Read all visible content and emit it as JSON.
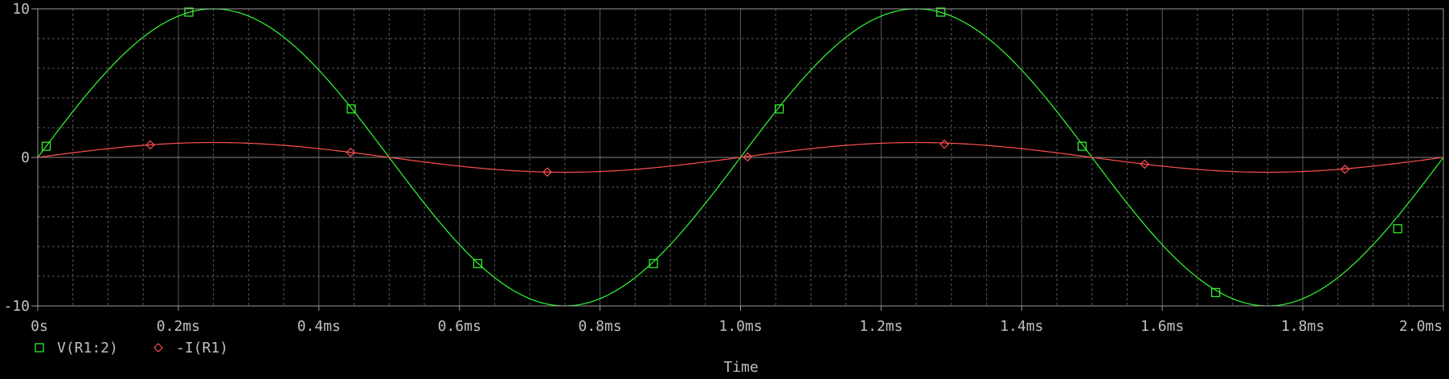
{
  "chart_data": {
    "type": "line",
    "title": "",
    "xlabel": "Time",
    "ylabel": "",
    "xlim": [
      0,
      2.0
    ],
    "ylim": [
      -10,
      10
    ],
    "x_unit": "ms",
    "x_ticks": [
      0,
      0.2,
      0.4,
      0.6,
      0.8,
      1.0,
      1.2,
      1.4,
      1.6,
      1.8,
      2.0
    ],
    "x_tick_labels": [
      "0s",
      "0.2ms",
      "0.4ms",
      "0.6ms",
      "0.8ms",
      "1.0ms",
      "1.2ms",
      "1.4ms",
      "1.6ms",
      "1.8ms",
      "2.0ms"
    ],
    "y_ticks": [
      -10,
      0,
      10
    ],
    "y_tick_labels": [
      "-10",
      "0",
      "10"
    ],
    "grid": true,
    "legend_position": "bottom-left",
    "background": "#000000",
    "grid_color": "#5a5a5a",
    "series": [
      {
        "name": "V(R1:2)",
        "color": "#33ff33",
        "marker": "square",
        "amplitude": 10,
        "frequency_khz": 1,
        "x": [
          0,
          0.0125,
          0.025,
          0.05,
          0.075,
          0.1,
          0.125,
          0.15,
          0.175,
          0.2,
          0.225,
          0.25,
          0.275,
          0.3,
          0.325,
          0.35,
          0.375,
          0.4,
          0.425,
          0.45,
          0.475,
          0.5,
          0.525,
          0.55,
          0.575,
          0.6,
          0.625,
          0.65,
          0.675,
          0.7,
          0.725,
          0.75,
          0.775,
          0.8,
          0.825,
          0.85,
          0.875,
          0.9,
          0.925,
          0.95,
          0.975,
          1.0,
          1.025,
          1.05,
          1.075,
          1.1,
          1.125,
          1.15,
          1.175,
          1.2,
          1.225,
          1.25,
          1.275,
          1.3,
          1.325,
          1.35,
          1.375,
          1.4,
          1.425,
          1.45,
          1.475,
          1.5,
          1.525,
          1.55,
          1.575,
          1.6,
          1.625,
          1.65,
          1.675,
          1.7,
          1.725,
          1.75,
          1.775,
          1.8,
          1.825,
          1.85,
          1.875,
          1.9,
          1.925,
          1.95,
          1.975,
          2.0
        ],
        "values": [
          0,
          0.78,
          1.56,
          3.09,
          4.54,
          5.88,
          7.07,
          8.09,
          8.91,
          9.51,
          9.88,
          10,
          9.88,
          9.51,
          8.91,
          8.09,
          7.07,
          5.88,
          4.54,
          3.09,
          1.56,
          0,
          -1.56,
          -3.09,
          -4.54,
          -5.88,
          -7.07,
          -8.09,
          -8.91,
          -9.51,
          -9.88,
          -10,
          -9.88,
          -9.51,
          -8.91,
          -8.09,
          -7.07,
          -5.88,
          -4.54,
          -3.09,
          -1.56,
          0,
          1.56,
          3.09,
          4.54,
          5.88,
          7.07,
          8.09,
          8.91,
          9.51,
          9.88,
          10,
          9.88,
          9.51,
          8.91,
          8.09,
          7.07,
          5.88,
          4.54,
          3.09,
          1.56,
          0,
          -1.56,
          -3.09,
          -4.54,
          -5.88,
          -7.07,
          -8.09,
          -8.91,
          -9.51,
          -9.88,
          -10,
          -9.88,
          -9.51,
          -8.91,
          -8.09,
          -7.07,
          -5.88,
          -4.54,
          -3.09,
          -1.56,
          0
        ],
        "marker_x": [
          0.012,
          0.215,
          0.446,
          0.626,
          0.876,
          1.055,
          1.285,
          1.486,
          1.676,
          1.935
        ],
        "marker_values": [
          0.75,
          9.78,
          3.26,
          -7.15,
          -7.15,
          3.26,
          9.78,
          0.75,
          -9.1,
          -4.8
        ]
      },
      {
        "name": "-I(R1)",
        "color": "#ff5050",
        "marker": "diamond",
        "amplitude": 1,
        "frequency_khz": 1,
        "x": [
          0,
          0.025,
          0.05,
          0.075,
          0.1,
          0.125,
          0.15,
          0.175,
          0.2,
          0.225,
          0.25,
          0.275,
          0.3,
          0.325,
          0.35,
          0.375,
          0.4,
          0.425,
          0.45,
          0.475,
          0.5,
          0.525,
          0.55,
          0.575,
          0.6,
          0.625,
          0.65,
          0.675,
          0.7,
          0.725,
          0.75,
          0.775,
          0.8,
          0.825,
          0.85,
          0.875,
          0.9,
          0.925,
          0.95,
          0.975,
          1.0,
          1.025,
          1.05,
          1.075,
          1.1,
          1.125,
          1.15,
          1.175,
          1.2,
          1.225,
          1.25,
          1.275,
          1.3,
          1.325,
          1.35,
          1.375,
          1.4,
          1.425,
          1.45,
          1.475,
          1.5,
          1.525,
          1.55,
          1.575,
          1.6,
          1.625,
          1.65,
          1.675,
          1.7,
          1.725,
          1.75,
          1.775,
          1.8,
          1.825,
          1.85,
          1.875,
          1.9,
          1.925,
          1.95,
          1.975,
          2.0
        ],
        "values": [
          0,
          0.16,
          0.31,
          0.45,
          0.59,
          0.71,
          0.81,
          0.89,
          0.95,
          0.99,
          1,
          0.99,
          0.95,
          0.89,
          0.81,
          0.71,
          0.59,
          0.45,
          0.31,
          0.16,
          0,
          -0.16,
          -0.31,
          -0.45,
          -0.59,
          -0.71,
          -0.81,
          -0.89,
          -0.95,
          -0.99,
          -1,
          -0.99,
          -0.95,
          -0.89,
          -0.81,
          -0.71,
          -0.59,
          -0.45,
          -0.31,
          -0.16,
          0,
          0.16,
          0.31,
          0.45,
          0.59,
          0.71,
          0.81,
          0.89,
          0.95,
          0.99,
          1,
          0.99,
          0.95,
          0.89,
          0.81,
          0.71,
          0.59,
          0.45,
          0.31,
          0.16,
          0,
          -0.16,
          -0.31,
          -0.45,
          -0.59,
          -0.71,
          -0.81,
          -0.89,
          -0.95,
          -0.99,
          -1,
          -0.99,
          -0.95,
          -0.89,
          -0.81,
          -0.71,
          -0.59,
          -0.45,
          -0.31,
          -0.16,
          0
        ],
        "marker_x": [
          0.16,
          0.445,
          0.725,
          1.01,
          1.29,
          1.575,
          1.86
        ],
        "marker_values": [
          0.84,
          0.34,
          -0.99,
          0.03,
          0.89,
          -0.46,
          -0.8
        ]
      }
    ]
  }
}
